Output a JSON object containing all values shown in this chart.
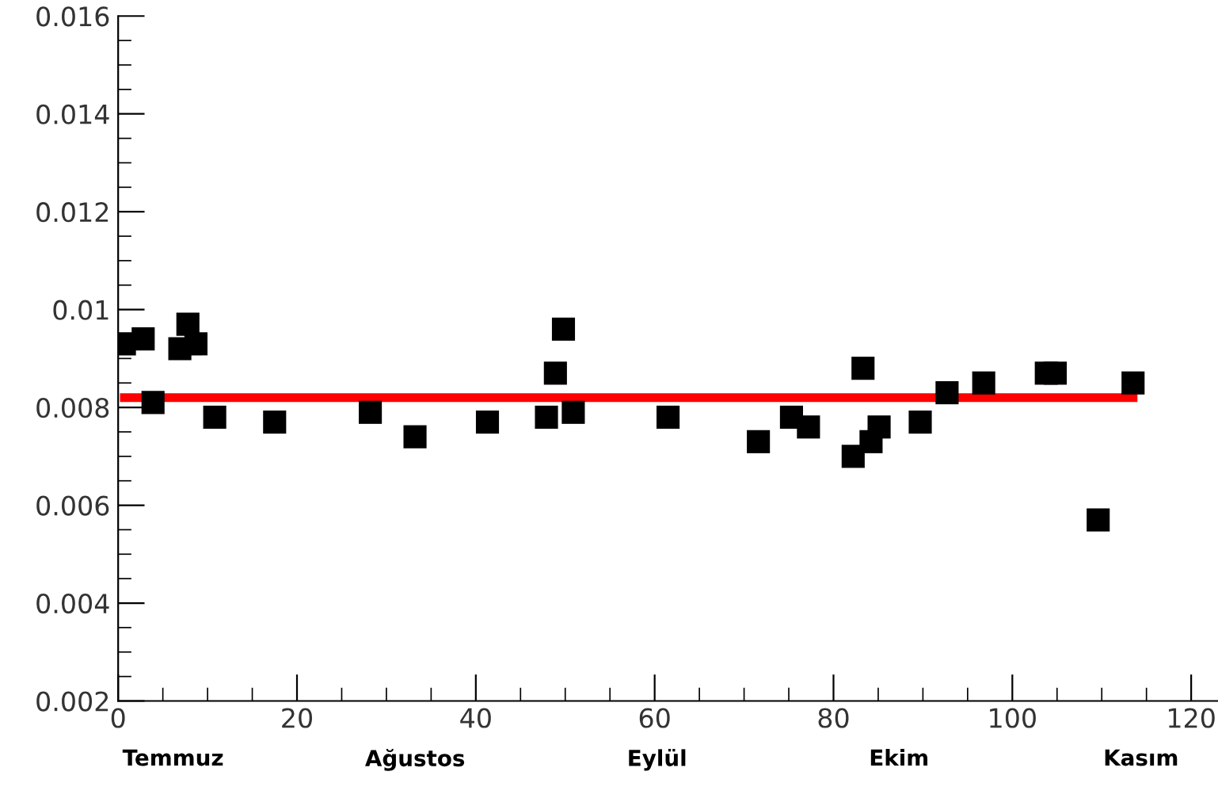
{
  "chart_data": {
    "type": "scatter",
    "marker": "square",
    "grid": false,
    "series": [
      {
        "color": "#000000",
        "x": [
          0.7,
          2.8,
          3.9,
          6.9,
          7.8,
          8.7,
          10.8,
          17.5,
          28.2,
          33.2,
          41.3,
          47.9,
          48.9,
          49.8,
          50.9,
          61.5,
          71.6,
          75.3,
          77.2,
          82.2,
          83.3,
          84.2,
          85.1,
          89.7,
          92.7,
          96.8,
          103.8,
          104.8,
          109.6,
          113.5
        ],
        "values": [
          0.0093,
          0.0094,
          0.0081,
          0.0092,
          0.0097,
          0.0093,
          0.0078,
          0.0077,
          0.0079,
          0.0074,
          0.0077,
          0.0078,
          0.0087,
          0.0096,
          0.0079,
          0.0078,
          0.0073,
          0.0078,
          0.0076,
          0.007,
          0.0088,
          0.0073,
          0.0076,
          0.0077,
          0.0083,
          0.0085,
          0.0087,
          0.0087,
          0.0057,
          0.0085
        ]
      },
      {
        "type": "line",
        "marker": "none",
        "color": "#ff0000",
        "x": [
          0.7,
          113.5
        ],
        "values": [
          0.0082,
          0.0082
        ]
      }
    ],
    "xlim": [
      0,
      123
    ],
    "xticks": [
      0,
      {
        "value": 5,
        "label": null
      },
      {
        "value": 10,
        "label": null
      },
      {
        "value": 15,
        "label": null
      },
      20,
      {
        "value": 25,
        "label": null
      },
      {
        "value": 30,
        "label": null
      },
      {
        "value": 35,
        "label": null
      },
      40,
      {
        "value": 45,
        "label": null
      },
      {
        "value": 50,
        "label": null
      },
      {
        "value": 55,
        "label": null
      },
      60,
      {
        "value": 65,
        "label": null
      },
      {
        "value": 70,
        "label": null
      },
      {
        "value": 75,
        "label": null
      },
      80,
      {
        "value": 85,
        "label": null
      },
      {
        "value": 90,
        "label": null
      },
      {
        "value": 95,
        "label": null
      },
      100,
      {
        "value": 105,
        "label": null
      },
      {
        "value": 110,
        "label": null
      },
      {
        "value": 115,
        "label": null
      },
      120
    ],
    "ylim": [
      0.002,
      0.016
    ],
    "yticks": [
      0.002,
      {
        "value": 0.0025,
        "label": null
      },
      {
        "value": 0.003,
        "label": null
      },
      {
        "value": 0.0035,
        "label": null
      },
      0.004,
      {
        "value": 0.0045,
        "label": null
      },
      {
        "value": 0.005,
        "label": null
      },
      {
        "value": 0.0055,
        "label": null
      },
      0.006,
      {
        "value": 0.0065,
        "label": null
      },
      {
        "value": 0.007,
        "label": null
      },
      {
        "value": 0.0075,
        "label": null
      },
      0.008,
      {
        "value": 0.0085,
        "label": null
      },
      {
        "value": 0.009,
        "label": null
      },
      {
        "value": 0.0095,
        "label": null
      },
      0.01,
      {
        "value": 0.0105,
        "label": null
      },
      {
        "value": 0.011,
        "label": null
      },
      {
        "value": 0.0115,
        "label": null
      },
      0.012,
      {
        "value": 0.0125,
        "label": null
      },
      {
        "value": 0.013,
        "label": null
      },
      {
        "value": 0.0135,
        "label": null
      },
      0.014,
      {
        "value": 0.0145,
        "label": null
      },
      {
        "value": 0.015,
        "label": null
      },
      {
        "value": 0.0155,
        "label": null
      },
      0.016
    ],
    "annotations": [
      "Temmuz",
      "Ağustos",
      "Eylül",
      "Ekim",
      "Kasım"
    ]
  }
}
